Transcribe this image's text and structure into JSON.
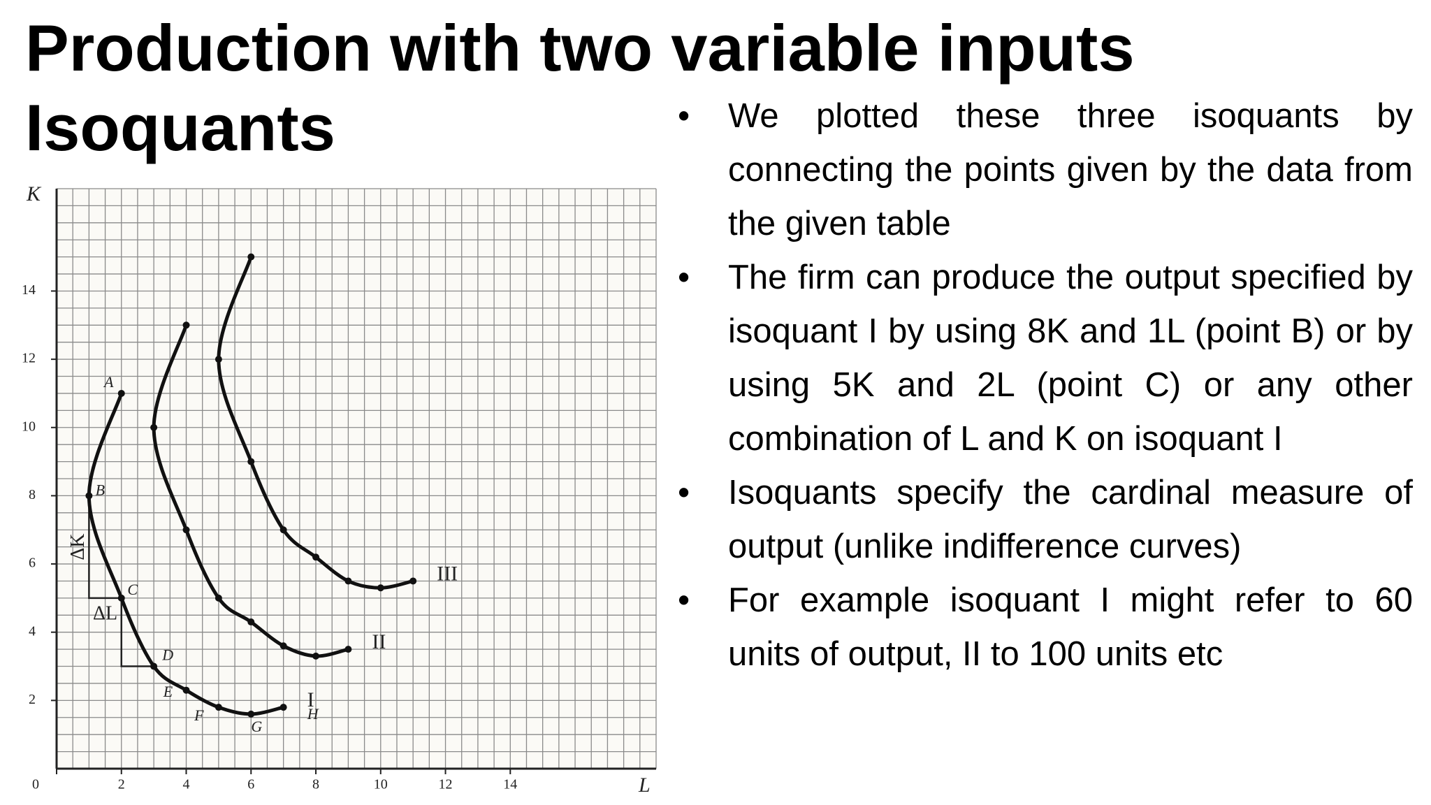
{
  "title": "Production with two variable inputs",
  "subtitle": "Isoquants",
  "bullets": [
    "We plotted these three isoquants by connecting the points given by the data from the given table",
    "The firm can produce the output specified by isoquant I by using 8K and 1L (point B) or by using 5K and 2L (point C) or any other combination of L and K on isoquant I",
    "Isoquants specify the cardinal measure of output (unlike indifference curves)",
    "For example isoquant I might refer to 60 units of output, II to 100 units etc"
  ],
  "chart_data": {
    "type": "line",
    "xlabel": "L",
    "ylabel": "K",
    "xlim": [
      0,
      18.5
    ],
    "ylim": [
      0,
      17
    ],
    "xticks": [
      0,
      2,
      4,
      6,
      8,
      10,
      12,
      14
    ],
    "yticks": [
      2,
      4,
      6,
      8,
      10,
      12,
      14
    ],
    "grid": true,
    "grid_step": 0.5,
    "color": "#111111",
    "annotations": [
      "ΔK",
      "ΔL"
    ],
    "series": [
      {
        "name": "I",
        "x": [
          2,
          1,
          2,
          3,
          4,
          5,
          6,
          7
        ],
        "values": [
          11,
          8,
          5,
          3,
          2.3,
          1.8,
          1.6,
          1.8
        ],
        "point_labels": [
          "A",
          "B",
          "C",
          "D",
          "E",
          "F",
          "G",
          "H"
        ]
      },
      {
        "name": "II",
        "x": [
          4,
          3,
          4,
          5,
          6,
          7,
          8,
          9
        ],
        "values": [
          13,
          10,
          7,
          5,
          4.3,
          3.6,
          3.3,
          3.5
        ]
      },
      {
        "name": "III",
        "x": [
          6,
          5,
          6,
          7,
          8,
          9,
          10,
          11
        ],
        "values": [
          15,
          12,
          9,
          7,
          6.2,
          5.5,
          5.3,
          5.5
        ]
      }
    ]
  }
}
